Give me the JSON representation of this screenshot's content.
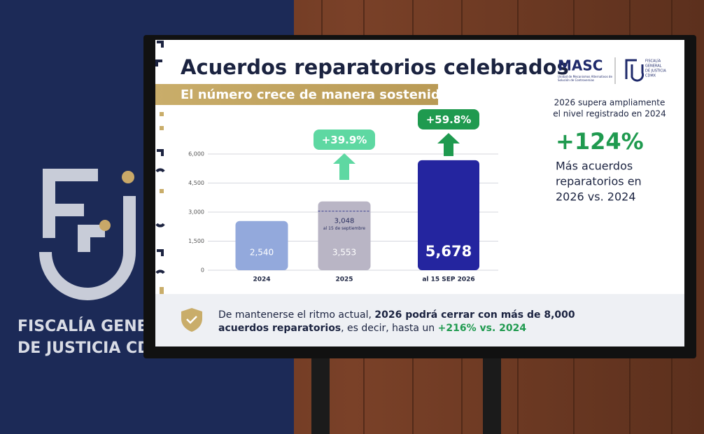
{
  "banner": {
    "line1": "FISCALÍA GENER",
    "line2": "DE JUSTICIA CDI"
  },
  "slide": {
    "title": "Acuerdos reparatorios celebrados",
    "subtitle": "El número crece de manera sostenida",
    "logo_masc": "MASC",
    "logo_masc_caption": [
      "Unidad de Mecanismos Alternativos de",
      "Solución de Controversias"
    ],
    "logo_fgj_caption": [
      "FISCALÍA",
      "GENERAL",
      "DE JUSTICIA",
      "CDMX"
    ],
    "side": {
      "lead": [
        "2026 supera ampliamente",
        "el nivel registrado en 2024"
      ],
      "big": "+124%",
      "text": [
        "Más acuerdos",
        "reparatorios en",
        "2026 vs. 2024"
      ]
    },
    "footer": {
      "line1": [
        {
          "text": "De mantenerse el ritmo actual, ",
          "style": "normal"
        },
        {
          "text": "2026 podrá cerrar con más de 8,000",
          "style": "bold"
        }
      ],
      "line2": [
        {
          "text": "acuerdos reparatorios",
          "style": "bold"
        },
        {
          "text": ", es decir,  hasta un ",
          "style": "normal"
        },
        {
          "text": "+216% vs. 2024",
          "style": "green"
        }
      ]
    }
  },
  "chart_data": {
    "type": "bar",
    "categories": [
      "2024",
      "2025",
      "al 15 SEP 2026"
    ],
    "values": [
      2540,
      3553,
      5678
    ],
    "value_labels": [
      "2,540",
      "3,553",
      "5,678"
    ],
    "colors": [
      "#93a9dc",
      "#b9b5c5",
      "#24259f"
    ],
    "growth_labels": [
      null,
      "+39.9%",
      "+59.8%"
    ],
    "growth_colors": [
      null,
      "#5ed8a2",
      "#1f9a4f"
    ],
    "reference": {
      "value": 3048,
      "label": "3,048",
      "note": "al 15 de septiembre"
    },
    "ylim": [
      0,
      6000
    ],
    "yticks": [
      0,
      {
        "value": 1500,
        "label": "1,500"
      },
      {
        "value": 3000,
        "label": "3,000"
      },
      {
        "value": 4500,
        "label": "4,500"
      },
      {
        "value": 6000,
        "label": "6,000"
      }
    ],
    "grid": true
  }
}
